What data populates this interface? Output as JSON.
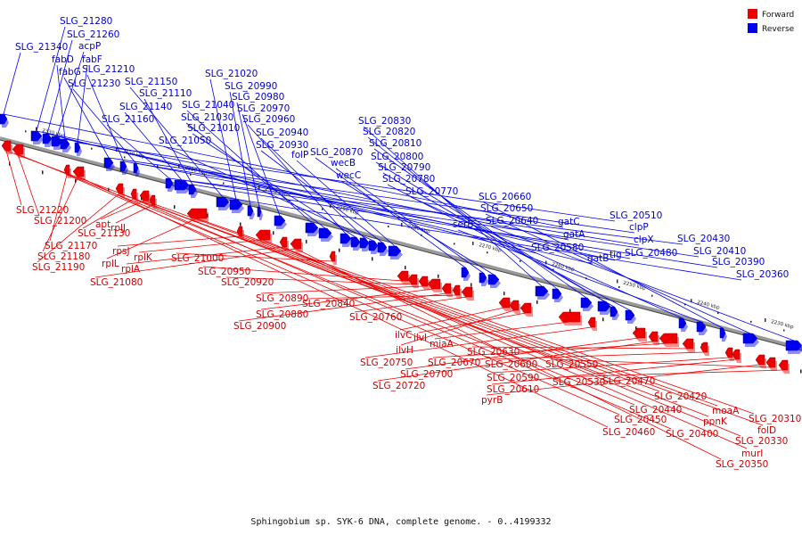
{
  "caption": "Sphingobium sp. SYK-6 DNA, complete genome. - 0..4199332",
  "legend": [
    {
      "label": "Forward",
      "color": "#ee0000"
    },
    {
      "label": "Reverse",
      "color": "#0000ee"
    }
  ],
  "colors": {
    "forward": "#ee0000",
    "reverse": "#0000ee",
    "backbone": "#808080"
  },
  "ticks": [
    "2330 kbp",
    "2320 kbp",
    "2310 kbp",
    "2300 kbp",
    "2290 kbp",
    "2280 kbp",
    "2270 kbp",
    "2260 kbp",
    "2250 kbp",
    "2240 kbp",
    "2230 kbp"
  ],
  "reverse_labels": [
    "SLG_21340",
    "SLG_21280",
    "SLG_21260",
    "acpP",
    "fabD",
    "fabF",
    "fabG",
    "SLG_21210",
    "SLG_21230",
    "SLG_21160",
    "SLG_21140",
    "SLG_21110",
    "SLG_21150",
    "SLG_21020",
    "SLG_20990",
    "SLG_20980",
    "SLG_20970",
    "SLG_21040",
    "SLG_21030",
    "SLG_20960",
    "SLG_21010",
    "SLG_20940",
    "SLG_21050",
    "SLG_20930",
    "folP",
    "SLG_20870",
    "wecB",
    "wecC",
    "SLG_20830",
    "SLG_20820",
    "SLG_20810",
    "SLG_20800",
    "SLG_20790",
    "SLG_20780",
    "SLG_20770",
    "serB",
    "SLG_20660",
    "SLG_20650",
    "SLG_20640",
    "gatC",
    "gatA",
    "SLG_20580",
    "gatB",
    "tig",
    "SLG_20510",
    "clpP",
    "clpX",
    "SLG_20480",
    "SLG_20430",
    "SLG_20410",
    "SLG_20390",
    "SLG_20360"
  ],
  "forward_labels": [
    "SLG_21220",
    "SLG_21200",
    "SLG_21170",
    "SLG_21180",
    "SLG_21190",
    "SLG_21130",
    "apt",
    "rplJ",
    "rplL",
    "rpsJ",
    "rplK",
    "rplA",
    "SLG_21080",
    "SLG_21000",
    "SLG_20950",
    "SLG_20920",
    "SLG_20890",
    "SLG_20880",
    "SLG_20900",
    "SLG_20840",
    "SLG_20760",
    "ilvC",
    "ilvH",
    "ilvI",
    "miaA",
    "SLG_20750",
    "SLG_20700",
    "SLG_20720",
    "SLG_20670",
    "SLG_20630",
    "SLG_20600",
    "SLG_20590",
    "SLG_20610",
    "pyrB",
    "SLG_20550",
    "SLG_20530",
    "SLG_20470",
    "SLG_20440",
    "SLG_20450",
    "SLG_20460",
    "SLG_20420",
    "SLG_20400",
    "moaA",
    "ppnK",
    "SLG_20310",
    "folD",
    "SLG_20330",
    "murI",
    "SLG_20350"
  ]
}
